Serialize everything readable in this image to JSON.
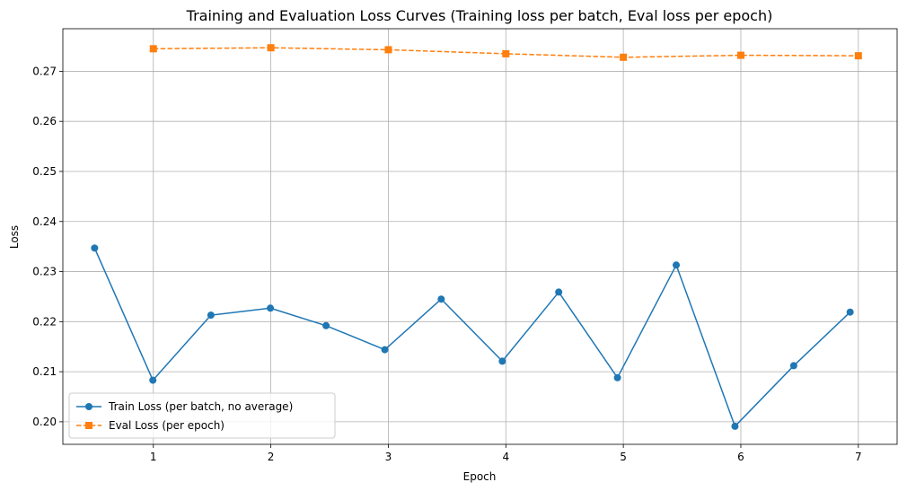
{
  "chart_data": {
    "type": "line",
    "title": "Training and Evaluation Loss Curves (Training loss per batch, Eval loss per epoch)",
    "xlabel": "Epoch",
    "ylabel": "Loss",
    "xlim": [
      0.23,
      7.33
    ],
    "ylim": [
      0.1955,
      0.2785
    ],
    "xticks": [
      1,
      2,
      3,
      4,
      5,
      6,
      7
    ],
    "yticks": [
      0.2,
      0.21,
      0.22,
      0.23,
      0.24,
      0.25,
      0.26,
      0.27
    ],
    "ytick_labels": [
      "0.20",
      "0.21",
      "0.22",
      "0.23",
      "0.24",
      "0.25",
      "0.26",
      "0.27"
    ],
    "grid": true,
    "legend_position": "lower-left",
    "series": [
      {
        "name": "Train Loss (per batch, no average)",
        "color": "#1f77b4",
        "line_style": "solid",
        "marker": "circle",
        "x": [
          0.5,
          0.996,
          1.49,
          1.996,
          2.47,
          2.97,
          3.45,
          3.97,
          4.45,
          4.95,
          5.45,
          5.95,
          6.45,
          6.93
        ],
        "y": [
          0.2347,
          0.2083,
          0.2213,
          0.2227,
          0.2192,
          0.2144,
          0.2245,
          0.2121,
          0.2259,
          0.2088,
          0.2313,
          0.1991,
          0.2112,
          0.2219
        ]
      },
      {
        "name": "Eval Loss (per epoch)",
        "color": "#ff7f0e",
        "line_style": "dashed",
        "marker": "square",
        "x": [
          1,
          2,
          3,
          4,
          5,
          6,
          7
        ],
        "y": [
          0.2745,
          0.2747,
          0.2743,
          0.2735,
          0.2728,
          0.2732,
          0.2731
        ]
      }
    ]
  }
}
